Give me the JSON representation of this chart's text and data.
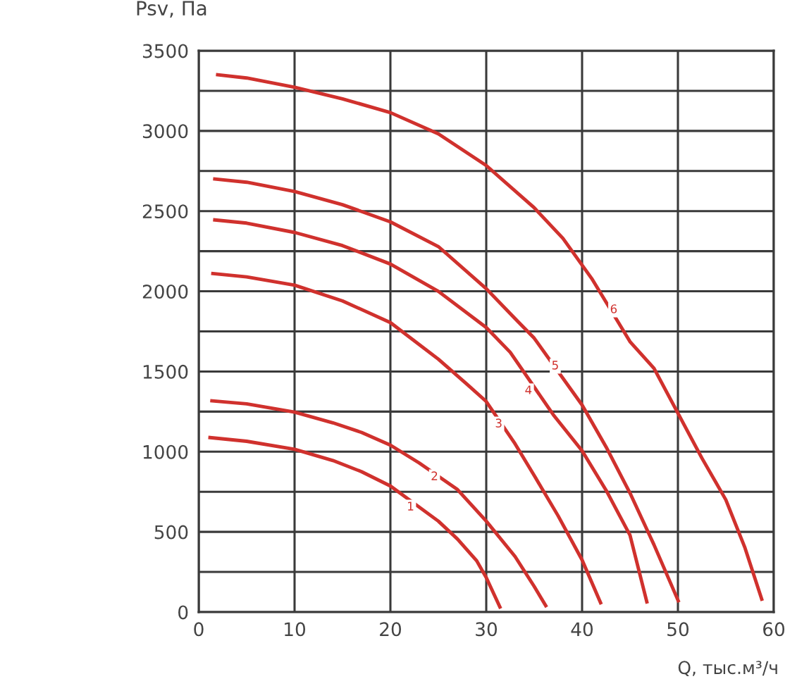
{
  "chart_data": {
    "type": "line",
    "xlabel": "Q, тыс.м³/ч",
    "ylabel": "Psv, Па",
    "xlim": [
      0,
      60
    ],
    "xticks": [
      0,
      10,
      20,
      30,
      40,
      50,
      60
    ],
    "ylim": [
      0,
      3500
    ],
    "yticks": [
      0,
      {
        "value": 250,
        "label": null
      },
      500,
      {
        "value": 750,
        "label": null
      },
      1000,
      {
        "value": 1250,
        "label": null
      },
      1500,
      {
        "value": 1750,
        "label": null
      },
      2000,
      {
        "value": 2250,
        "label": null
      },
      2500,
      {
        "value": 2750,
        "label": null
      },
      3000,
      {
        "value": 3250,
        "label": null
      },
      3500
    ],
    "grid": true,
    "legend": false,
    "marker": "none",
    "line_style": "solid",
    "series": [
      {
        "color": "#d0312d",
        "x": [
          1,
          5,
          10,
          14,
          17,
          20,
          25,
          27,
          29,
          30,
          31.5
        ],
        "values": [
          1089,
          1065,
          1015,
          945,
          875,
          786,
          567,
          455,
          320,
          215,
          22
        ]
      },
      {
        "color": "#d0312d",
        "x": [
          1.2,
          5,
          10,
          14,
          17,
          20,
          23,
          27,
          30,
          33,
          35,
          36.3
        ],
        "values": [
          1318,
          1298,
          1247,
          1180,
          1120,
          1041,
          930,
          764,
          567,
          347,
          160,
          31
        ]
      },
      {
        "color": "#d0312d",
        "x": [
          1.3,
          5,
          10,
          15,
          20,
          25,
          28,
          30,
          33,
          35,
          37.5,
          40,
          42
        ],
        "values": [
          2112,
          2090,
          2038,
          1940,
          1805,
          1577,
          1420,
          1313,
          1050,
          852,
          600,
          325,
          48
        ]
      },
      {
        "color": "#d0312d",
        "x": [
          1.5,
          5,
          10,
          15,
          20,
          25,
          30,
          32.5,
          37,
          40,
          42.5,
          45,
          46.8
        ],
        "values": [
          2446,
          2425,
          2367,
          2285,
          2170,
          2000,
          1774,
          1620,
          1230,
          1006,
          760,
          479,
          53
        ]
      },
      {
        "color": "#d0312d",
        "x": [
          1.5,
          5,
          10,
          15,
          20,
          25,
          30,
          33,
          35,
          40,
          42.5,
          45,
          47.5,
          50.1
        ],
        "values": [
          2701,
          2680,
          2622,
          2540,
          2433,
          2279,
          2016,
          1830,
          1708,
          1291,
          1030,
          742,
          420,
          61
        ]
      },
      {
        "color": "#d0312d",
        "x": [
          1.8,
          5,
          10,
          15,
          20,
          25,
          30,
          35,
          38,
          41,
          45,
          47.5,
          50,
          52.5,
          55,
          57,
          58.8
        ],
        "values": [
          3351,
          3330,
          3272,
          3200,
          3114,
          2982,
          2784,
          2521,
          2330,
          2080,
          1686,
          1520,
          1240,
          960,
          700,
          400,
          70
        ]
      }
    ],
    "annotations": [
      {
        "text": "1",
        "x": 22.1,
        "y": 654
      },
      {
        "text": "2",
        "x": 24.6,
        "y": 843
      },
      {
        "text": "3",
        "x": 31.3,
        "y": 1172
      },
      {
        "text": "4",
        "x": 34.4,
        "y": 1379
      },
      {
        "text": "5",
        "x": 37.2,
        "y": 1533
      },
      {
        "text": "6",
        "x": 43.3,
        "y": 1884
      }
    ]
  }
}
